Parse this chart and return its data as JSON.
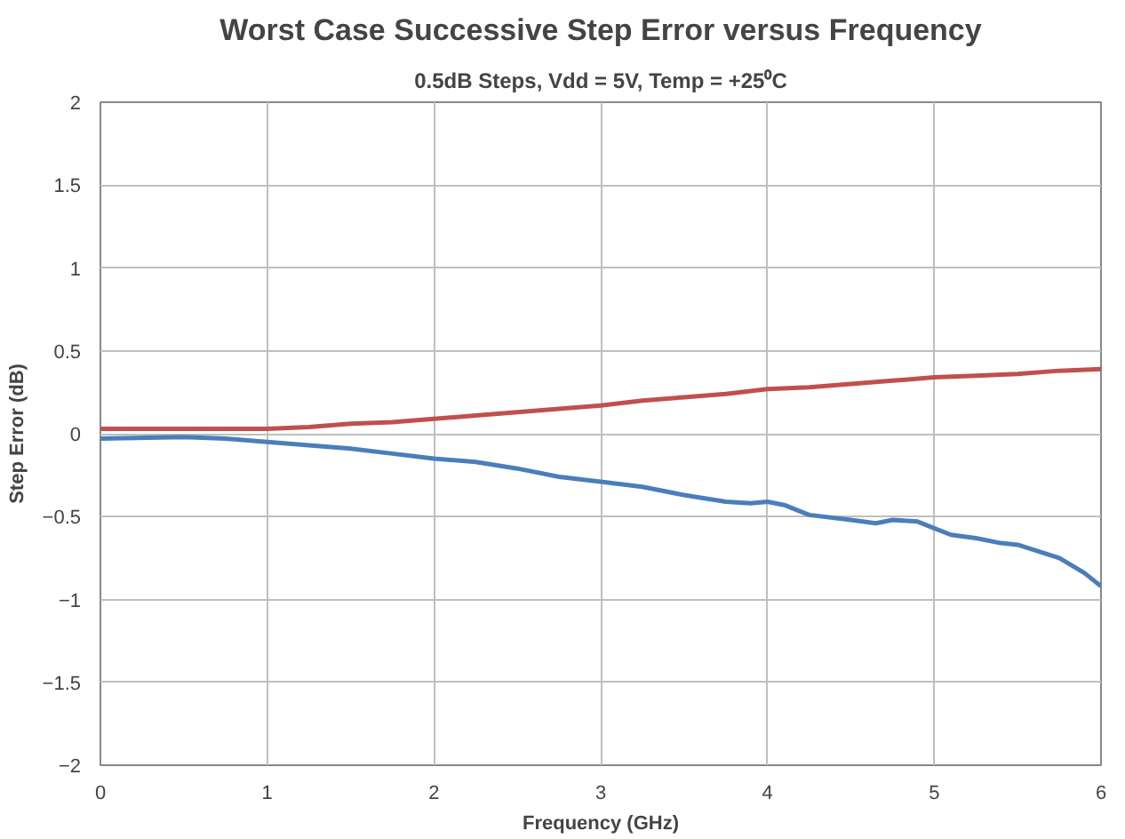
{
  "chart_data": {
    "type": "line",
    "title": "Worst Case Successive Step Error versus Frequency",
    "subtitle": "0.5dB Steps, Vdd = 5V, Temp = +25⁰C",
    "xlabel": "Frequency (GHz)",
    "ylabel": "Step Error (dB)",
    "xlim": [
      0,
      6
    ],
    "xticks": [
      0,
      1,
      2,
      3,
      4,
      5,
      6
    ],
    "ylim": [
      -2,
      2
    ],
    "yticks": [
      -2,
      -1.5,
      -1,
      -0.5,
      0,
      0.5,
      1,
      1.5,
      2
    ],
    "grid": true,
    "marker": "none",
    "line_style": "solid",
    "series": [
      {
        "color": "#c0504d",
        "x": [
          0,
          0.5,
          1,
          1.25,
          1.5,
          1.75,
          2,
          2.25,
          2.5,
          2.75,
          3,
          3.25,
          3.5,
          3.75,
          4,
          4.25,
          4.5,
          4.75,
          5,
          5.25,
          5.5,
          5.75,
          6
        ],
        "values": [
          0.03,
          0.03,
          0.03,
          0.04,
          0.06,
          0.07,
          0.09,
          0.11,
          0.13,
          0.15,
          0.17,
          0.2,
          0.22,
          0.24,
          0.27,
          0.28,
          0.3,
          0.32,
          0.34,
          0.35,
          0.36,
          0.38,
          0.39
        ]
      },
      {
        "color": "#4a7ebb",
        "x": [
          0,
          0.5,
          0.75,
          1,
          1.25,
          1.5,
          1.75,
          2,
          2.25,
          2.5,
          2.75,
          3,
          3.25,
          3.5,
          3.75,
          3.9,
          4,
          4.1,
          4.25,
          4.5,
          4.65,
          4.75,
          4.9,
          5,
          5.1,
          5.25,
          5.4,
          5.5,
          5.75,
          5.9,
          6
        ],
        "values": [
          -0.03,
          -0.02,
          -0.03,
          -0.05,
          -0.07,
          -0.09,
          -0.12,
          -0.15,
          -0.17,
          -0.21,
          -0.26,
          -0.29,
          -0.32,
          -0.37,
          -0.41,
          -0.42,
          -0.41,
          -0.43,
          -0.49,
          -0.52,
          -0.54,
          -0.52,
          -0.53,
          -0.57,
          -0.61,
          -0.63,
          -0.66,
          -0.67,
          -0.75,
          -0.84,
          -0.92
        ]
      }
    ]
  }
}
